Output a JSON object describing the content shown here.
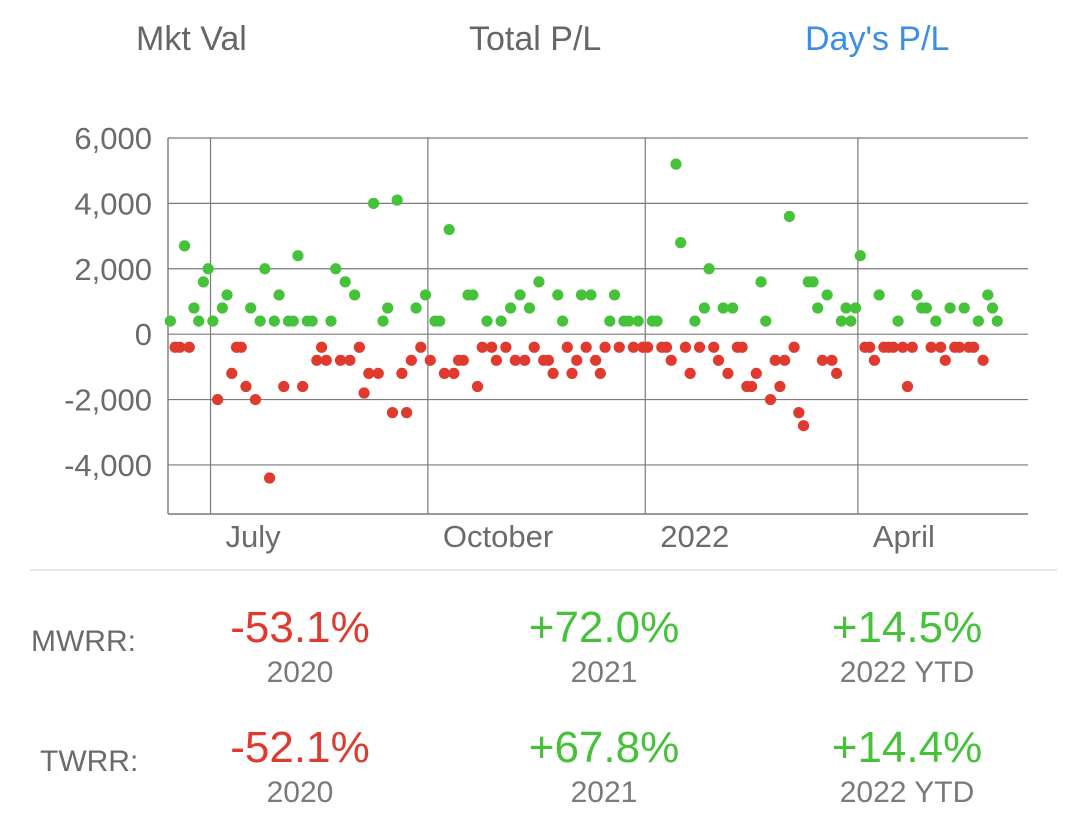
{
  "tabs": [
    {
      "label": "Mkt Val",
      "active": false
    },
    {
      "label": "Total P/L",
      "active": false
    },
    {
      "label": "Day's P/L",
      "active": true
    }
  ],
  "colors": {
    "positive": "#45c23a",
    "negative": "#e03a2f",
    "accent": "#3a8ee6"
  },
  "chart_data": {
    "type": "scatter",
    "title": "",
    "xlabel": "",
    "ylabel": "",
    "ylim": [
      -5500,
      6000
    ],
    "y_ticks": [
      "6,000",
      "4,000",
      "2,000",
      "0",
      "-2,000",
      "-4,000"
    ],
    "x_tick_labels": [
      "July",
      "October",
      "2022",
      "April"
    ],
    "x_tick_dates": [
      "2021-07-01",
      "2021-10-01",
      "2022-01-01",
      "2022-04-01"
    ],
    "x_range": [
      "2021-06-13",
      "2022-06-12"
    ],
    "grid": true,
    "series": [
      {
        "points": [
          [
            "2021-06-14",
            400
          ],
          [
            "2021-06-16",
            -400
          ],
          [
            "2021-06-18",
            -400
          ],
          [
            "2021-06-20",
            2700
          ],
          [
            "2021-06-22",
            -400
          ],
          [
            "2021-06-24",
            800
          ],
          [
            "2021-06-26",
            400
          ],
          [
            "2021-06-28",
            1600
          ],
          [
            "2021-06-30",
            2000
          ],
          [
            "2021-07-02",
            400
          ],
          [
            "2021-07-04",
            -2000
          ],
          [
            "2021-07-06",
            800
          ],
          [
            "2021-07-08",
            1200
          ],
          [
            "2021-07-10",
            -1200
          ],
          [
            "2021-07-12",
            -400
          ],
          [
            "2021-07-14",
            -400
          ],
          [
            "2021-07-16",
            -1600
          ],
          [
            "2021-07-18",
            800
          ],
          [
            "2021-07-20",
            -2000
          ],
          [
            "2021-07-22",
            400
          ],
          [
            "2021-07-24",
            2000
          ],
          [
            "2021-07-26",
            -4400
          ],
          [
            "2021-07-28",
            400
          ],
          [
            "2021-07-30",
            1200
          ],
          [
            "2021-08-01",
            -1600
          ],
          [
            "2021-08-03",
            400
          ],
          [
            "2021-08-05",
            400
          ],
          [
            "2021-08-07",
            2400
          ],
          [
            "2021-08-09",
            -1600
          ],
          [
            "2021-08-11",
            400
          ],
          [
            "2021-08-13",
            400
          ],
          [
            "2021-08-15",
            -800
          ],
          [
            "2021-08-17",
            -400
          ],
          [
            "2021-08-19",
            -800
          ],
          [
            "2021-08-21",
            400
          ],
          [
            "2021-08-23",
            2000
          ],
          [
            "2021-08-25",
            -800
          ],
          [
            "2021-08-27",
            1600
          ],
          [
            "2021-08-29",
            -800
          ],
          [
            "2021-08-31",
            1200
          ],
          [
            "2021-09-02",
            -400
          ],
          [
            "2021-09-04",
            -1800
          ],
          [
            "2021-09-06",
            -1200
          ],
          [
            "2021-09-08",
            4000
          ],
          [
            "2021-09-10",
            -1200
          ],
          [
            "2021-09-12",
            400
          ],
          [
            "2021-09-14",
            800
          ],
          [
            "2021-09-16",
            -2400
          ],
          [
            "2021-09-18",
            4100
          ],
          [
            "2021-09-20",
            -1200
          ],
          [
            "2021-09-22",
            -2400
          ],
          [
            "2021-09-24",
            -800
          ],
          [
            "2021-09-26",
            800
          ],
          [
            "2021-09-28",
            -400
          ],
          [
            "2021-09-30",
            1200
          ],
          [
            "2021-10-02",
            -800
          ],
          [
            "2021-10-04",
            400
          ],
          [
            "2021-10-06",
            400
          ],
          [
            "2021-10-08",
            -1200
          ],
          [
            "2021-10-10",
            3200
          ],
          [
            "2021-10-12",
            -1200
          ],
          [
            "2021-10-14",
            -800
          ],
          [
            "2021-10-16",
            -800
          ],
          [
            "2021-10-18",
            1200
          ],
          [
            "2021-10-20",
            1200
          ],
          [
            "2021-10-22",
            -1600
          ],
          [
            "2021-10-24",
            -400
          ],
          [
            "2021-10-26",
            400
          ],
          [
            "2021-10-28",
            -400
          ],
          [
            "2021-10-30",
            -800
          ],
          [
            "2021-11-01",
            400
          ],
          [
            "2021-11-03",
            -400
          ],
          [
            "2021-11-05",
            800
          ],
          [
            "2021-11-07",
            -800
          ],
          [
            "2021-11-09",
            1200
          ],
          [
            "2021-11-11",
            -800
          ],
          [
            "2021-11-13",
            800
          ],
          [
            "2021-11-15",
            -400
          ],
          [
            "2021-11-17",
            1600
          ],
          [
            "2021-11-19",
            -800
          ],
          [
            "2021-11-21",
            -800
          ],
          [
            "2021-11-23",
            -1200
          ],
          [
            "2021-11-25",
            1200
          ],
          [
            "2021-11-27",
            400
          ],
          [
            "2021-11-29",
            -400
          ],
          [
            "2021-12-01",
            -1200
          ],
          [
            "2021-12-03",
            -800
          ],
          [
            "2021-12-05",
            1200
          ],
          [
            "2021-12-07",
            -400
          ],
          [
            "2021-12-09",
            1200
          ],
          [
            "2021-12-11",
            -800
          ],
          [
            "2021-12-13",
            -1200
          ],
          [
            "2021-12-15",
            -400
          ],
          [
            "2021-12-17",
            400
          ],
          [
            "2021-12-19",
            1200
          ],
          [
            "2021-12-21",
            -400
          ],
          [
            "2021-12-23",
            400
          ],
          [
            "2021-12-25",
            400
          ],
          [
            "2021-12-27",
            -400
          ],
          [
            "2021-12-29",
            400
          ],
          [
            "2021-12-31",
            -400
          ],
          [
            "2022-01-02",
            -400
          ],
          [
            "2022-01-04",
            400
          ],
          [
            "2022-01-06",
            400
          ],
          [
            "2022-01-08",
            -400
          ],
          [
            "2022-01-10",
            -400
          ],
          [
            "2022-01-12",
            -800
          ],
          [
            "2022-01-14",
            5200
          ],
          [
            "2022-01-16",
            2800
          ],
          [
            "2022-01-18",
            -400
          ],
          [
            "2022-01-20",
            -1200
          ],
          [
            "2022-01-22",
            400
          ],
          [
            "2022-01-24",
            -400
          ],
          [
            "2022-01-26",
            800
          ],
          [
            "2022-01-28",
            2000
          ],
          [
            "2022-01-30",
            -400
          ],
          [
            "2022-02-01",
            -800
          ],
          [
            "2022-02-03",
            800
          ],
          [
            "2022-02-05",
            -1200
          ],
          [
            "2022-02-07",
            800
          ],
          [
            "2022-02-09",
            -400
          ],
          [
            "2022-02-11",
            -400
          ],
          [
            "2022-02-13",
            -1600
          ],
          [
            "2022-02-15",
            -1600
          ],
          [
            "2022-02-17",
            -1200
          ],
          [
            "2022-02-19",
            1600
          ],
          [
            "2022-02-21",
            400
          ],
          [
            "2022-02-23",
            -2000
          ],
          [
            "2022-02-25",
            -800
          ],
          [
            "2022-02-27",
            -1600
          ],
          [
            "2022-03-01",
            -800
          ],
          [
            "2022-03-03",
            3600
          ],
          [
            "2022-03-05",
            -400
          ],
          [
            "2022-03-07",
            -2400
          ],
          [
            "2022-03-09",
            -2800
          ],
          [
            "2022-03-11",
            1600
          ],
          [
            "2022-03-13",
            1600
          ],
          [
            "2022-03-15",
            800
          ],
          [
            "2022-03-17",
            -800
          ],
          [
            "2022-03-19",
            1200
          ],
          [
            "2022-03-21",
            -800
          ],
          [
            "2022-03-23",
            -1200
          ],
          [
            "2022-03-25",
            400
          ],
          [
            "2022-03-27",
            800
          ],
          [
            "2022-03-29",
            400
          ],
          [
            "2022-03-31",
            800
          ],
          [
            "2022-04-02",
            2400
          ],
          [
            "2022-04-04",
            -400
          ],
          [
            "2022-04-06",
            -400
          ],
          [
            "2022-04-08",
            -800
          ],
          [
            "2022-04-10",
            1200
          ],
          [
            "2022-04-12",
            -400
          ],
          [
            "2022-04-14",
            -400
          ],
          [
            "2022-04-16",
            -400
          ],
          [
            "2022-04-18",
            400
          ],
          [
            "2022-04-20",
            -400
          ],
          [
            "2022-04-22",
            -1600
          ],
          [
            "2022-04-24",
            -400
          ],
          [
            "2022-04-26",
            1200
          ],
          [
            "2022-04-28",
            800
          ],
          [
            "2022-04-30",
            800
          ],
          [
            "2022-05-02",
            -400
          ],
          [
            "2022-05-04",
            400
          ],
          [
            "2022-05-06",
            -400
          ],
          [
            "2022-05-08",
            -800
          ],
          [
            "2022-05-10",
            800
          ],
          [
            "2022-05-12",
            -400
          ],
          [
            "2022-05-14",
            -400
          ],
          [
            "2022-05-16",
            800
          ],
          [
            "2022-05-18",
            -400
          ],
          [
            "2022-05-20",
            -400
          ],
          [
            "2022-05-22",
            400
          ],
          [
            "2022-05-24",
            -800
          ],
          [
            "2022-05-26",
            1200
          ],
          [
            "2022-05-28",
            800
          ],
          [
            "2022-05-30",
            400
          ]
        ]
      }
    ]
  },
  "stats": {
    "rows": [
      {
        "label": "MWRR:",
        "cells": [
          {
            "value": "-53.1%",
            "period": "2020",
            "sign": "neg"
          },
          {
            "value": "+72.0%",
            "period": "2021",
            "sign": "pos"
          },
          {
            "value": "+14.5%",
            "period": "2022 YTD",
            "sign": "pos"
          }
        ]
      },
      {
        "label": "TWRR:",
        "cells": [
          {
            "value": "-52.1%",
            "period": "2020",
            "sign": "neg"
          },
          {
            "value": "+67.8%",
            "period": "2021",
            "sign": "pos"
          },
          {
            "value": "+14.4%",
            "period": "2022 YTD",
            "sign": "pos"
          }
        ]
      }
    ]
  }
}
